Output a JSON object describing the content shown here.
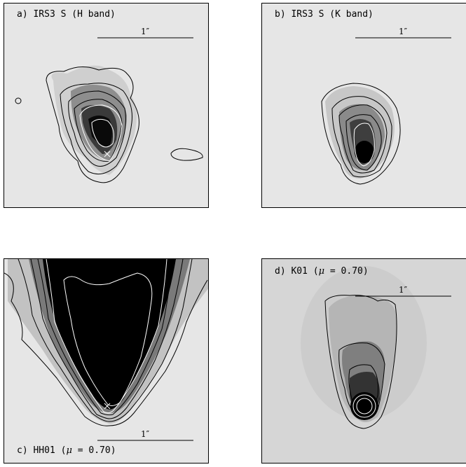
{
  "panels": [
    {
      "id": "a",
      "label_prefix": "a) IRS3 S (H band)",
      "scale_label": "1″"
    },
    {
      "id": "b",
      "label_prefix": "b) IRS3 S (K band)",
      "scale_label": "1″"
    },
    {
      "id": "c",
      "label_prefix": "c) HH01 (",
      "mu_symbol": "μ",
      "label_suffix": " = 0.70)",
      "scale_label": "1″"
    },
    {
      "id": "d",
      "label_prefix": "d) K01 (",
      "mu_symbol": "μ",
      "label_suffix": " = 0.70)",
      "scale_label": "1″"
    }
  ],
  "colors": {
    "background_light": "#e6e6e6",
    "background_panel_d": "#d8d8d8",
    "contour_dark": "#000000",
    "contour_light": "#ffffff"
  }
}
